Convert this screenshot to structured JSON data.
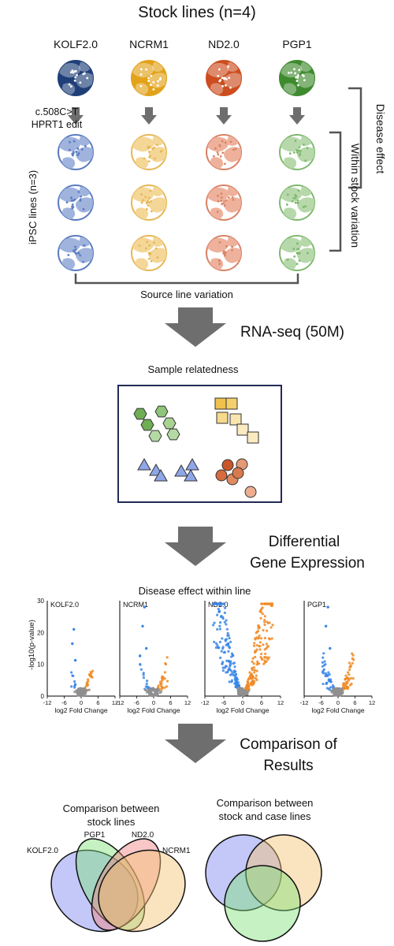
{
  "title": "Stock lines (n=4)",
  "stock_lines": [
    {
      "name": "KOLF2.0",
      "color": "#1f3f78",
      "light": "#9fb3dd",
      "edge": "#5c7cc0"
    },
    {
      "name": "NCRM1",
      "color": "#e2a21a",
      "light": "#f4d697",
      "edge": "#e6b857"
    },
    {
      "name": "ND2.0",
      "color": "#cc4d1f",
      "light": "#eeb19b",
      "edge": "#d98468"
    },
    {
      "name": "PGP1",
      "color": "#3f8a2f",
      "light": "#b6d8aa",
      "edge": "#7fb96e"
    }
  ],
  "edit_label_line1": "c.508C>T",
  "edit_label_line2": "HPRT1 edit",
  "ipsc_label": "iPSC lines (n=3)",
  "disease_effect_label": "Disease effect",
  "within_stock_label": "Within stock variation",
  "source_line_label": "Source line variation",
  "step1_label": "RNA-seq (50M)",
  "relatedness_title": "Sample relatedness",
  "step2_label_line1": "Differential",
  "step2_label_line2": "Gene Expression",
  "volcano_title": "Disease effect within line",
  "volcano_ylabel": "-log10(p-value)",
  "volcano_xlabel": "log2 Fold Change",
  "volcano_yticks": [
    "0",
    "10",
    "20",
    "30"
  ],
  "volcano_xticks": [
    "-12",
    "-6",
    "0",
    "6",
    "12"
  ],
  "volcano_panels": [
    "KOLF2.0",
    "NCRM1",
    "ND2.0",
    "PGP1"
  ],
  "volcano_colors": {
    "down": "#3a86e8",
    "up": "#f08a24",
    "ns": "#8f8f8f"
  },
  "step3_label_line1": "Comparison of",
  "step3_label_line2": "Results",
  "venn_left_title_line1": "Comparison between",
  "venn_left_title_line2": "stock lines",
  "venn_right_title_line1": "Comparison between",
  "venn_right_title_line2": "stock and case lines",
  "venn_left_labels": [
    "KOLF2.0",
    "PGP1",
    "ND2.0",
    "NCRM1"
  ],
  "venn_colors": [
    "#7b86f0",
    "#f5c070",
    "#7ee07a",
    "#f08080"
  ]
}
